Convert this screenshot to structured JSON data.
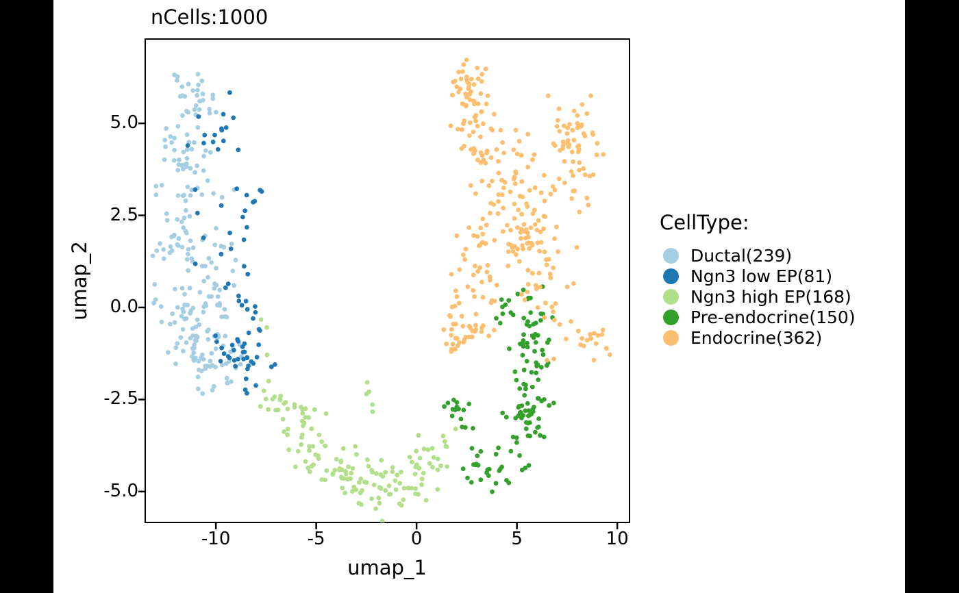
{
  "figure": {
    "canvas_background": "#000000",
    "figure_background": "#ffffff",
    "axes_border_color": "#000000",
    "text_color": "#000000"
  },
  "chart_data": {
    "type": "scatter",
    "title": "nCells:1000",
    "xlabel": "umap_1",
    "ylabel": "umap_2",
    "n_cells_total": 1000,
    "xlim": [
      -13.52,
      10.61
    ],
    "ylim": [
      -5.84,
      7.29
    ],
    "xticks": {
      "values": [
        -10,
        -5,
        0,
        5,
        10
      ],
      "labels": [
        "-10",
        "-5",
        "0",
        "5",
        "10"
      ]
    },
    "yticks": {
      "values": [
        5.0,
        2.5,
        0.0,
        -2.5,
        -5.0
      ],
      "labels": [
        "5.0",
        "2.5",
        "0.0",
        "-2.5",
        "-5.0"
      ]
    },
    "grid": false,
    "legend_position": "right",
    "point_radius_px": 3.4,
    "seed": 7,
    "series": [
      {
        "id": "ductal",
        "name": "Ductal",
        "count": 239,
        "color": "#a6cee3",
        "blobs": [
          [
            -11.3,
            5.7,
            0.5,
            0.4,
            28
          ],
          [
            -11.4,
            4.1,
            0.75,
            0.65,
            40
          ],
          [
            -11.6,
            2.0,
            0.8,
            1.0,
            38
          ],
          [
            -9.9,
            1.5,
            0.7,
            1.2,
            25
          ],
          [
            -11.0,
            -0.4,
            0.95,
            0.75,
            75
          ],
          [
            -10.1,
            -1.5,
            0.7,
            0.4,
            33
          ]
        ]
      },
      {
        "id": "ngn3-low-ep",
        "name": "Ngn3 low EP",
        "count": 81,
        "color": "#1f78b4",
        "blobs": [
          [
            -9.6,
            4.8,
            0.5,
            0.45,
            12
          ],
          [
            -10.6,
            2.8,
            0.7,
            1.2,
            8
          ],
          [
            -8.5,
            2.9,
            0.35,
            0.6,
            10
          ],
          [
            -8.9,
            0.9,
            0.45,
            0.9,
            12
          ],
          [
            -8.7,
            -1.2,
            0.6,
            0.5,
            37
          ],
          [
            -7.15,
            -1.7,
            0.1,
            0.15,
            2
          ]
        ]
      },
      {
        "id": "ngn3-high-ep",
        "name": "Ngn3 high EP",
        "count": 168,
        "color": "#b2df8a",
        "blobs": [
          [
            -7.0,
            -2.5,
            0.4,
            0.3,
            16
          ],
          [
            -6.0,
            -3.2,
            0.4,
            0.4,
            18
          ],
          [
            -5.0,
            -3.8,
            0.45,
            0.4,
            20
          ],
          [
            -3.8,
            -4.3,
            0.5,
            0.4,
            24
          ],
          [
            -2.5,
            -4.9,
            0.55,
            0.4,
            30
          ],
          [
            -1.2,
            -4.9,
            0.5,
            0.35,
            22
          ],
          [
            -0.1,
            -4.4,
            0.5,
            0.4,
            16
          ],
          [
            0.9,
            -3.9,
            0.45,
            0.35,
            12
          ],
          [
            -7.5,
            -0.9,
            0.15,
            0.35,
            3
          ],
          [
            -2.35,
            -2.5,
            0.12,
            0.45,
            5
          ],
          [
            1.8,
            -3.6,
            0.3,
            0.3,
            2
          ]
        ]
      },
      {
        "id": "pre-endocrine",
        "name": "Pre-endocrine",
        "count": 150,
        "color": "#33a02c",
        "blobs": [
          [
            1.9,
            -2.7,
            0.55,
            0.35,
            15
          ],
          [
            3.7,
            -4.2,
            0.7,
            0.35,
            25
          ],
          [
            5.2,
            -3.3,
            0.5,
            0.5,
            30
          ],
          [
            5.8,
            -2.0,
            0.45,
            0.65,
            35
          ],
          [
            5.7,
            -0.7,
            0.5,
            0.55,
            30
          ],
          [
            5.0,
            0.0,
            0.7,
            0.3,
            15
          ]
        ]
      },
      {
        "id": "endocrine",
        "name": "Endocrine",
        "count": 362,
        "color": "#fdbf6f",
        "blobs": [
          [
            2.6,
            6.0,
            0.5,
            0.45,
            40
          ],
          [
            3.2,
            4.7,
            0.65,
            0.55,
            40
          ],
          [
            7.6,
            4.6,
            0.6,
            0.5,
            40
          ],
          [
            8.3,
            3.5,
            0.5,
            0.6,
            20
          ],
          [
            5.0,
            3.3,
            1.0,
            0.7,
            55
          ],
          [
            5.6,
            1.8,
            1.0,
            0.7,
            50
          ],
          [
            6.9,
            0.3,
            0.6,
            0.8,
            25
          ],
          [
            3.0,
            1.5,
            0.55,
            1.0,
            35
          ],
          [
            2.5,
            -0.3,
            0.6,
            0.65,
            27
          ],
          [
            1.8,
            -0.6,
            0.25,
            0.5,
            13
          ],
          [
            8.6,
            -1.0,
            0.5,
            0.22,
            17
          ]
        ]
      }
    ]
  },
  "legend": {
    "title": "CellType:",
    "items": [
      {
        "id": "ductal",
        "label": "Ductal(239)",
        "color": "#a6cee3"
      },
      {
        "id": "ngn3-low-ep",
        "label": "Ngn3 low EP(81)",
        "color": "#1f78b4"
      },
      {
        "id": "ngn3-high-ep",
        "label": "Ngn3 high EP(168)",
        "color": "#b2df8a"
      },
      {
        "id": "pre-endocrine",
        "label": "Pre-endocrine(150)",
        "color": "#33a02c"
      },
      {
        "id": "endocrine",
        "label": "Endocrine(362)",
        "color": "#fdbf6f"
      }
    ]
  }
}
